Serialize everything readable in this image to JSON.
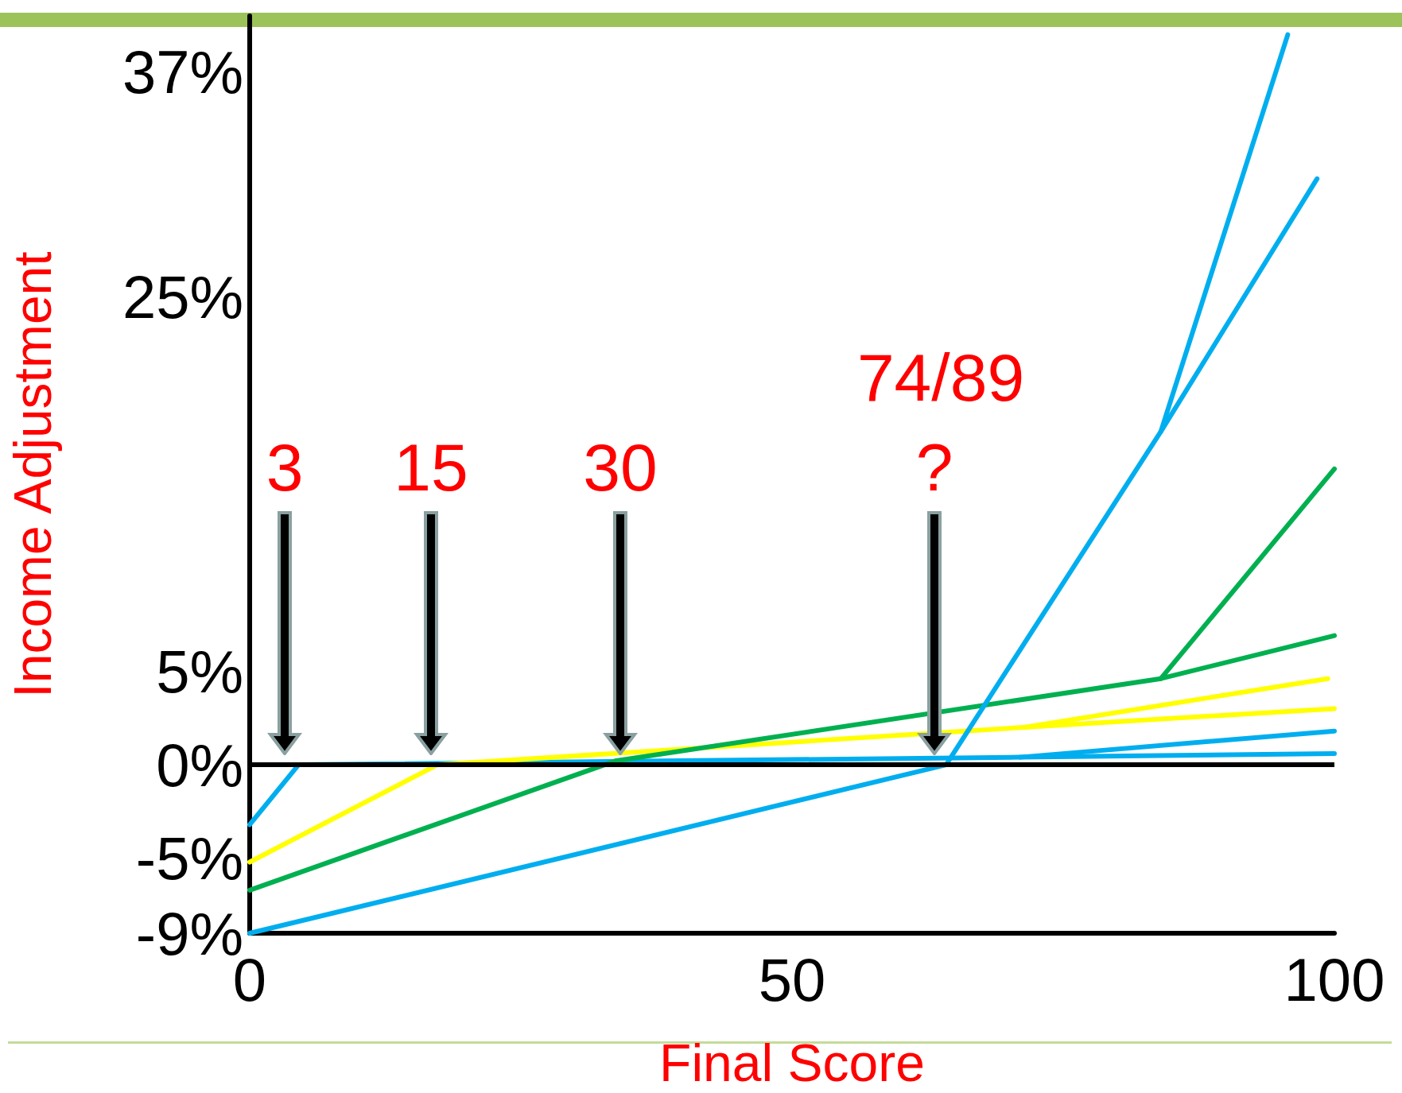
{
  "chart_data": {
    "type": "line",
    "xlabel": "Final Score",
    "ylabel": "Income Adjustment",
    "xlim": [
      0,
      100
    ],
    "xticks": [
      0,
      50,
      100
    ],
    "ylim": [
      -9,
      40
    ],
    "yticks": [
      {
        "value": -9,
        "label": "-9%"
      },
      {
        "value": -5,
        "label": "-5%"
      },
      {
        "value": 0,
        "label": "0%"
      },
      {
        "value": 5,
        "label": "5%"
      },
      {
        "value": 25,
        "label": "25%"
      },
      {
        "value": 37,
        "label": "37%"
      }
    ],
    "grid": false,
    "ref_lines": [
      {
        "axis": "y",
        "value": 0,
        "color": "#000000"
      }
    ],
    "series": [
      {
        "color": "#00aeef",
        "x": [
          0,
          4.5,
          71,
          100
        ],
        "values": [
          -3.2,
          0,
          0.4,
          0.6
        ]
      },
      {
        "color": "#00aeef",
        "x": [
          71,
          100
        ],
        "values": [
          0.4,
          1.8
        ]
      },
      {
        "color": "#ffff00",
        "x": [
          0,
          17.3,
          71.4,
          100
        ],
        "values": [
          -5.2,
          0,
          2,
          3
        ]
      },
      {
        "color": "#ffff00",
        "x": [
          71.4,
          99.4
        ],
        "values": [
          2,
          4.6
        ]
      },
      {
        "color": "#00b050",
        "x": [
          0,
          33.7,
          84,
          100
        ],
        "values": [
          -6.7,
          0.2,
          4.6,
          6.9
        ]
      },
      {
        "color": "#00b050",
        "x": [
          84,
          100
        ],
        "values": [
          4.6,
          15.8
        ]
      },
      {
        "color": "#00aeef",
        "x": [
          0,
          64.2,
          84,
          95.7
        ],
        "values": [
          -9,
          0,
          17.8,
          39
        ]
      },
      {
        "color": "#00aeef",
        "x": [
          84,
          98.4
        ],
        "values": [
          17.8,
          31.3
        ]
      }
    ],
    "annotations": [
      "3",
      "15",
      "30",
      "74/89",
      "?"
    ]
  }
}
